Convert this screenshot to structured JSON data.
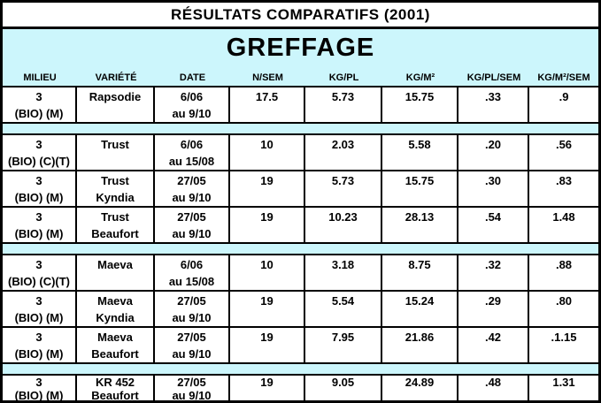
{
  "title": "RÉSULTATS COMPARATIFS (2001)",
  "section": {
    "title": "GREFFAGE"
  },
  "columns": [
    "MILIEU",
    "VARIÉTÉ",
    "DATE",
    "N/SEM",
    "KG/PL",
    "KG/M²",
    "KG/PL/SEM",
    "KG/M²/SEM"
  ],
  "colors": {
    "highlight_bg": "#CCF6FC",
    "row_bg": "#FFFFFF",
    "border": "#000000"
  },
  "rows": [
    {
      "type": "data",
      "cells": [
        [
          "3",
          "(BIO) (M)"
        ],
        [
          "Rapsodie",
          ""
        ],
        [
          "6/06",
          "au 9/10"
        ],
        [
          "17.5",
          ""
        ],
        [
          "5.73",
          ""
        ],
        [
          "15.75",
          ""
        ],
        [
          ".33",
          ""
        ],
        [
          ".9",
          ""
        ]
      ]
    },
    {
      "type": "separator"
    },
    {
      "type": "data",
      "cells": [
        [
          "3",
          "(BIO) (C)(T)"
        ],
        [
          "Trust",
          ""
        ],
        [
          "6/06",
          "au 15/08"
        ],
        [
          "10",
          ""
        ],
        [
          "2.03",
          ""
        ],
        [
          "5.58",
          ""
        ],
        [
          ".20",
          ""
        ],
        [
          ".56",
          ""
        ]
      ]
    },
    {
      "type": "data",
      "cells": [
        [
          "3",
          "(BIO) (M)"
        ],
        [
          "Trust",
          "Kyndia"
        ],
        [
          "27/05",
          "au 9/10"
        ],
        [
          "19",
          ""
        ],
        [
          "5.73",
          ""
        ],
        [
          "15.75",
          ""
        ],
        [
          ".30",
          ""
        ],
        [
          ".83",
          ""
        ]
      ]
    },
    {
      "type": "data",
      "cells": [
        [
          "3",
          "(BIO) (M)"
        ],
        [
          "Trust",
          "Beaufort"
        ],
        [
          "27/05",
          "au 9/10"
        ],
        [
          "19",
          ""
        ],
        [
          "10.23",
          ""
        ],
        [
          "28.13",
          ""
        ],
        [
          ".54",
          ""
        ],
        [
          "1.48",
          ""
        ]
      ]
    },
    {
      "type": "separator"
    },
    {
      "type": "data",
      "cells": [
        [
          "3",
          "(BIO) (C)(T)"
        ],
        [
          "Maeva",
          ""
        ],
        [
          "6/06",
          "au 15/08"
        ],
        [
          "10",
          ""
        ],
        [
          "3.18",
          ""
        ],
        [
          "8.75",
          ""
        ],
        [
          ".32",
          ""
        ],
        [
          ".88",
          ""
        ]
      ]
    },
    {
      "type": "data",
      "cells": [
        [
          "3",
          "(BIO) (M)"
        ],
        [
          "Maeva",
          "Kyndia"
        ],
        [
          "27/05",
          "au 9/10"
        ],
        [
          "19",
          ""
        ],
        [
          "5.54",
          ""
        ],
        [
          "15.24",
          ""
        ],
        [
          ".29",
          ""
        ],
        [
          ".80",
          ""
        ]
      ]
    },
    {
      "type": "data",
      "cells": [
        [
          "3",
          "(BIO) (M)"
        ],
        [
          "Maeva",
          "Beaufort"
        ],
        [
          "27/05",
          "au 9/10"
        ],
        [
          "19",
          ""
        ],
        [
          "7.95",
          ""
        ],
        [
          "21.86",
          ""
        ],
        [
          ".42",
          ""
        ],
        [
          ".1.15",
          ""
        ]
      ]
    },
    {
      "type": "separator"
    },
    {
      "type": "data",
      "cells": [
        [
          "3",
          "(BIO) (M)"
        ],
        [
          "KR 452",
          "Beaufort"
        ],
        [
          "27/05",
          "au 9/10"
        ],
        [
          "19",
          ""
        ],
        [
          "9.05",
          ""
        ],
        [
          "24.89",
          ""
        ],
        [
          ".48",
          ""
        ],
        [
          "1.31",
          ""
        ]
      ]
    }
  ]
}
